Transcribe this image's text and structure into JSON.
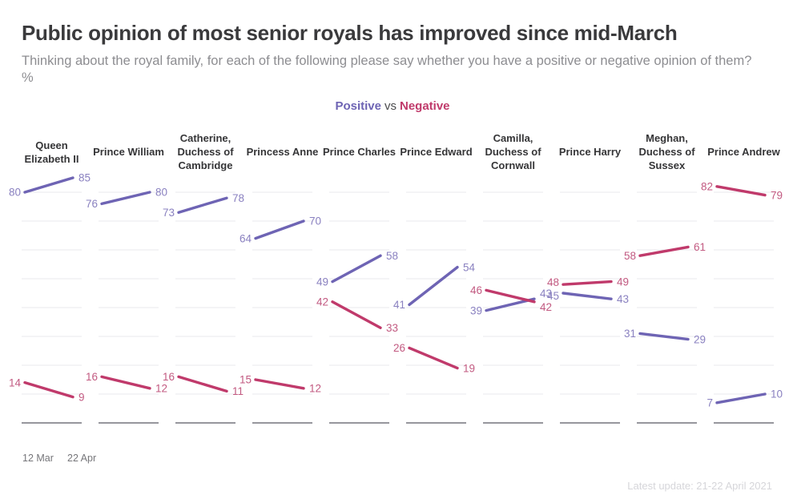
{
  "chart_data": {
    "type": "line",
    "subtype": "slope-chart-small-multiples",
    "title": "Public opinion of most senior royals has improved since mid-March",
    "subtitle": "Thinking about the royal family, for each of the following please say whether you have a positive or negative opinion of them? %",
    "legend": {
      "positive": "Positive",
      "separator": "vs",
      "negative": "Negative"
    },
    "legend_position": "top-center",
    "x": [
      "12 Mar",
      "22 Apr"
    ],
    "ylim": [
      0,
      88
    ],
    "grid": "on",
    "gridlines": [
      10,
      20,
      30,
      40,
      50,
      60,
      70,
      80
    ],
    "panels": [
      {
        "name": "Queen Elizabeth II",
        "positive": [
          80,
          85
        ],
        "negative": [
          14,
          9
        ]
      },
      {
        "name": "Prince William",
        "positive": [
          76,
          80
        ],
        "negative": [
          16,
          12
        ]
      },
      {
        "name": "Catherine, Duchess of Cambridge",
        "positive": [
          73,
          78
        ],
        "negative": [
          16,
          11
        ]
      },
      {
        "name": "Princess Anne",
        "positive": [
          64,
          70
        ],
        "negative": [
          15,
          12
        ]
      },
      {
        "name": "Prince Charles",
        "positive": [
          49,
          58
        ],
        "negative": [
          42,
          33
        ]
      },
      {
        "name": "Prince Edward",
        "positive": [
          41,
          54
        ],
        "negative": [
          26,
          19
        ]
      },
      {
        "name": "Camilla, Duchess of Cornwall",
        "positive": [
          39,
          43
        ],
        "negative": [
          46,
          42
        ]
      },
      {
        "name": "Prince Harry",
        "positive": [
          45,
          43
        ],
        "negative": [
          48,
          49
        ]
      },
      {
        "name": "Meghan, Duchess of Sussex",
        "positive": [
          31,
          29
        ],
        "negative": [
          58,
          61
        ]
      },
      {
        "name": "Prince Andrew",
        "positive": [
          7,
          10
        ],
        "negative": [
          82,
          79
        ]
      }
    ]
  },
  "footer": {
    "note": "Latest update: 21-22 April 2021"
  },
  "colors": {
    "positive": "#6e64b4",
    "negative": "#c03a6b",
    "positive_label": "#8a81c0",
    "negative_label": "#c25a81",
    "grid": "#e9e9ec",
    "baseline": "#97979d",
    "title": "#3a3a3c",
    "subtitle": "#8d8d91",
    "axis_text": "#76767a",
    "footer": "#d6d6da"
  }
}
